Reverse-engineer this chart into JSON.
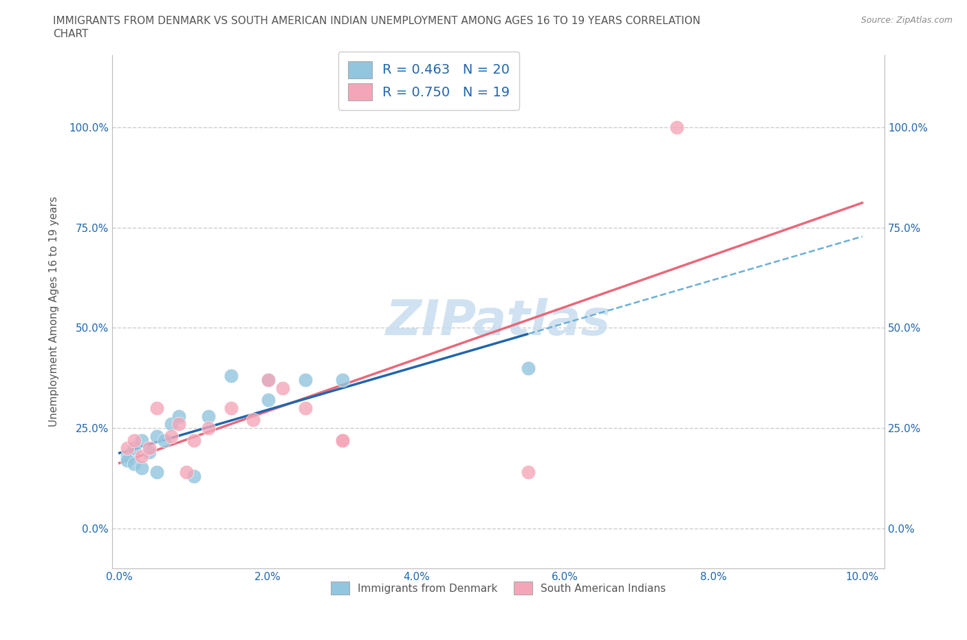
{
  "title_line1": "IMMIGRANTS FROM DENMARK VS SOUTH AMERICAN INDIAN UNEMPLOYMENT AMONG AGES 16 TO 19 YEARS CORRELATION",
  "title_line2": "CHART",
  "source_text": "Source: ZipAtlas.com",
  "ylabel": "Unemployment Among Ages 16 to 19 years",
  "xlim": [
    -0.001,
    0.103
  ],
  "ylim": [
    -0.1,
    1.18
  ],
  "xticks": [
    0.0,
    0.02,
    0.04,
    0.06,
    0.08,
    0.1
  ],
  "xticklabels": [
    "0.0%",
    "2.0%",
    "4.0%",
    "6.0%",
    "8.0%",
    "10.0%"
  ],
  "yticks": [
    0.0,
    0.25,
    0.5,
    0.75,
    1.0
  ],
  "yticklabels": [
    "0.0%",
    "25.0%",
    "50.0%",
    "75.0%",
    "100.0%"
  ],
  "legend_labels": [
    "Immigrants from Denmark",
    "South American Indians"
  ],
  "legend_r_n": [
    {
      "R": "0.463",
      "N": "20"
    },
    {
      "R": "0.750",
      "N": "19"
    }
  ],
  "blue_color": "#92C5DE",
  "pink_color": "#F4A6B8",
  "blue_line_color": "#2166AC",
  "pink_line_color": "#E8687A",
  "blue_dashed_color": "#6BAFD6",
  "watermark_color": "#C8DDEF",
  "grid_color": "#CCCCCC",
  "background_color": "#FFFFFF",
  "title_fontsize": 11,
  "axis_label_fontsize": 11,
  "tick_fontsize": 11,
  "legend_fontsize": 14,
  "blue_scatter_x": [
    0.001,
    0.001,
    0.002,
    0.002,
    0.003,
    0.003,
    0.004,
    0.005,
    0.005,
    0.006,
    0.007,
    0.008,
    0.01,
    0.012,
    0.015,
    0.02,
    0.02,
    0.025,
    0.03,
    0.055
  ],
  "blue_scatter_y": [
    0.18,
    0.17,
    0.16,
    0.2,
    0.15,
    0.22,
    0.19,
    0.23,
    0.14,
    0.22,
    0.26,
    0.28,
    0.13,
    0.28,
    0.38,
    0.32,
    0.37,
    0.37,
    0.37,
    0.4
  ],
  "pink_scatter_x": [
    0.001,
    0.002,
    0.003,
    0.004,
    0.005,
    0.007,
    0.008,
    0.009,
    0.01,
    0.012,
    0.015,
    0.018,
    0.02,
    0.022,
    0.025,
    0.03,
    0.03,
    0.055,
    0.075
  ],
  "pink_scatter_y": [
    0.2,
    0.22,
    0.18,
    0.2,
    0.3,
    0.23,
    0.26,
    0.14,
    0.22,
    0.25,
    0.3,
    0.27,
    0.37,
    0.35,
    0.3,
    0.22,
    0.22,
    0.14,
    1.0
  ],
  "blue_line_xmax": 0.055,
  "pink_line_xmax": 0.1
}
